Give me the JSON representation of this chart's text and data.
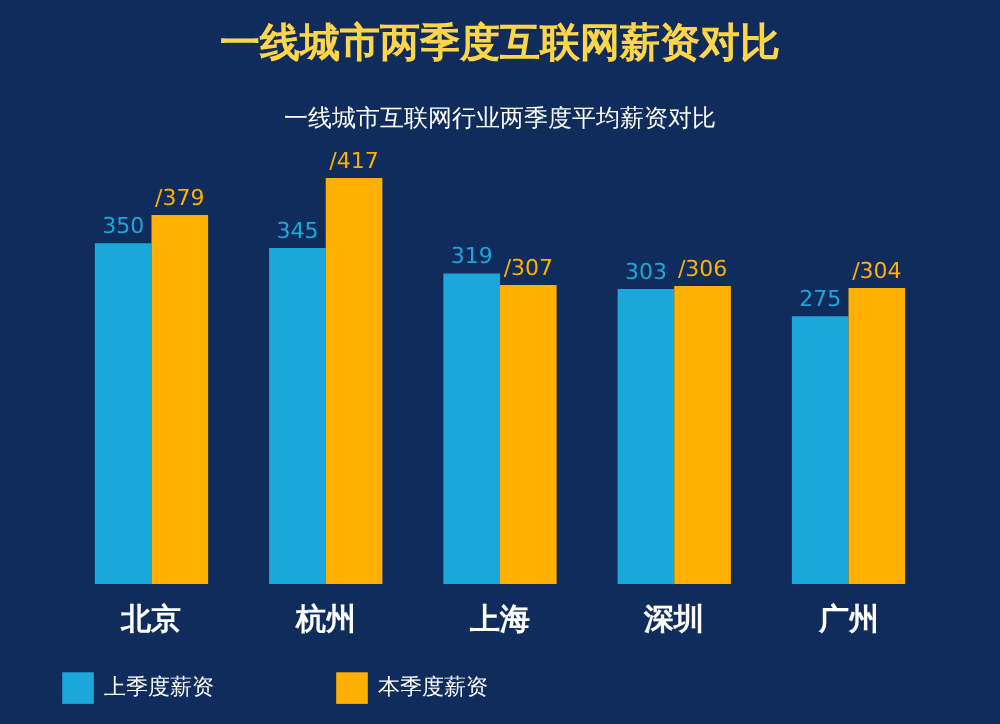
{
  "chart_data": {
    "type": "bar",
    "title": "一线城市两季度互联网薪资对比",
    "subtitle": "一线城市互联网行业两季度平均薪资对比",
    "categories": [
      "北京",
      "杭州",
      "上海",
      "深圳",
      "广州"
    ],
    "series": [
      {
        "name": "上季度薪资",
        "color": "#1ba7d9",
        "values": [
          350,
          345,
          319,
          303,
          275
        ],
        "value_labels": [
          "350",
          "345",
          "319",
          "303",
          "275"
        ]
      },
      {
        "name": "本季度薪资",
        "color": "#ffb000",
        "values": [
          379,
          417,
          307,
          306,
          304
        ],
        "value_labels": [
          "/379",
          "/417",
          "/307",
          "/306",
          "/304"
        ]
      }
    ],
    "legend": "bottom"
  }
}
